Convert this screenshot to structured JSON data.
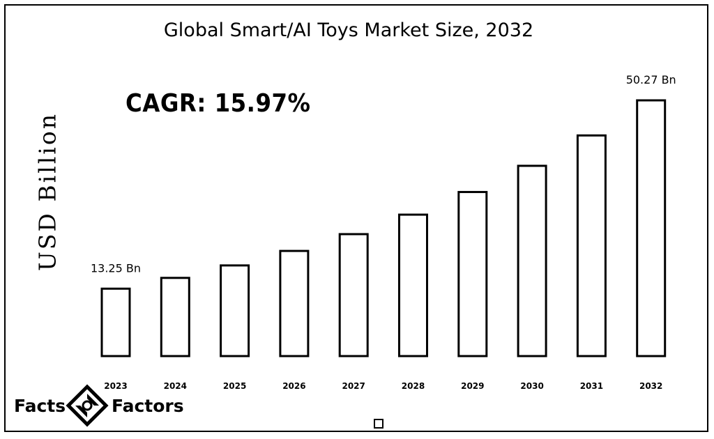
{
  "chart_data": {
    "type": "bar",
    "title": "Global Smart/AI Toys Market Size, 2032",
    "subtitle": "CAGR: 15.97%",
    "xlabel": "",
    "ylabel": "USD Billion",
    "categories": [
      "2023",
      "2024",
      "2025",
      "2026",
      "2027",
      "2028",
      "2029",
      "2030",
      "2031",
      "2032"
    ],
    "values": [
      13.25,
      15.37,
      17.82,
      20.67,
      23.97,
      27.8,
      32.25,
      37.4,
      43.37,
      50.27
    ],
    "data_labels": [
      {
        "index": 0,
        "text": "13.25 Bn"
      },
      {
        "index": 9,
        "text": "50.27 Bn"
      }
    ],
    "ylim": [
      0,
      50.27
    ],
    "grid": false,
    "legend": "none",
    "bar_fill": "#ffffff",
    "bar_stroke": "#000000"
  },
  "logo": {
    "left_word": "Facts",
    "right_word": "Factors"
  }
}
